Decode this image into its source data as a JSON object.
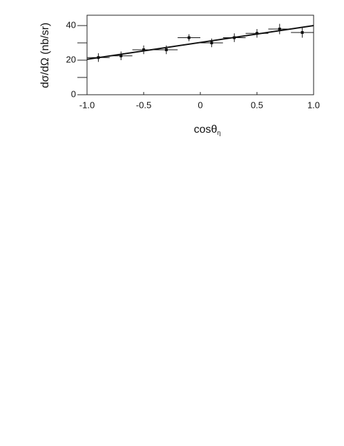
{
  "chart_data": {
    "type": "scatter",
    "y_label": "dσ/dΩ (nb/sr)",
    "x_label": "cosθ",
    "x_label_subscript": "η",
    "xlim": [
      -1,
      1
    ],
    "ylim": [
      0,
      46
    ],
    "xticks": [
      {
        "value": -1,
        "label": "-1.0"
      },
      -0.5,
      0,
      0.5,
      {
        "value": 1,
        "label": "1.0"
      }
    ],
    "yticks": [
      0,
      20,
      40
    ],
    "yminor": [
      10,
      30
    ],
    "color": "#111111",
    "points": {
      "x": [
        -0.9,
        -0.7,
        -0.5,
        -0.3,
        -0.1,
        0.1,
        0.3,
        0.5,
        0.7,
        0.9
      ],
      "y": [
        21.5,
        22.5,
        26,
        26,
        33,
        30,
        33,
        35.5,
        38,
        36
      ],
      "yerr": [
        2.5,
        2.5,
        2.5,
        2.5,
        2,
        2.5,
        2.5,
        2.5,
        3,
        3
      ],
      "xerr": [
        0.1,
        0.1,
        0.1,
        0.1,
        0.1,
        0.1,
        0.1,
        0.1,
        0.1,
        0.1
      ]
    },
    "fit": {
      "x": [
        -1,
        1
      ],
      "y": [
        20.5,
        40
      ]
    }
  }
}
